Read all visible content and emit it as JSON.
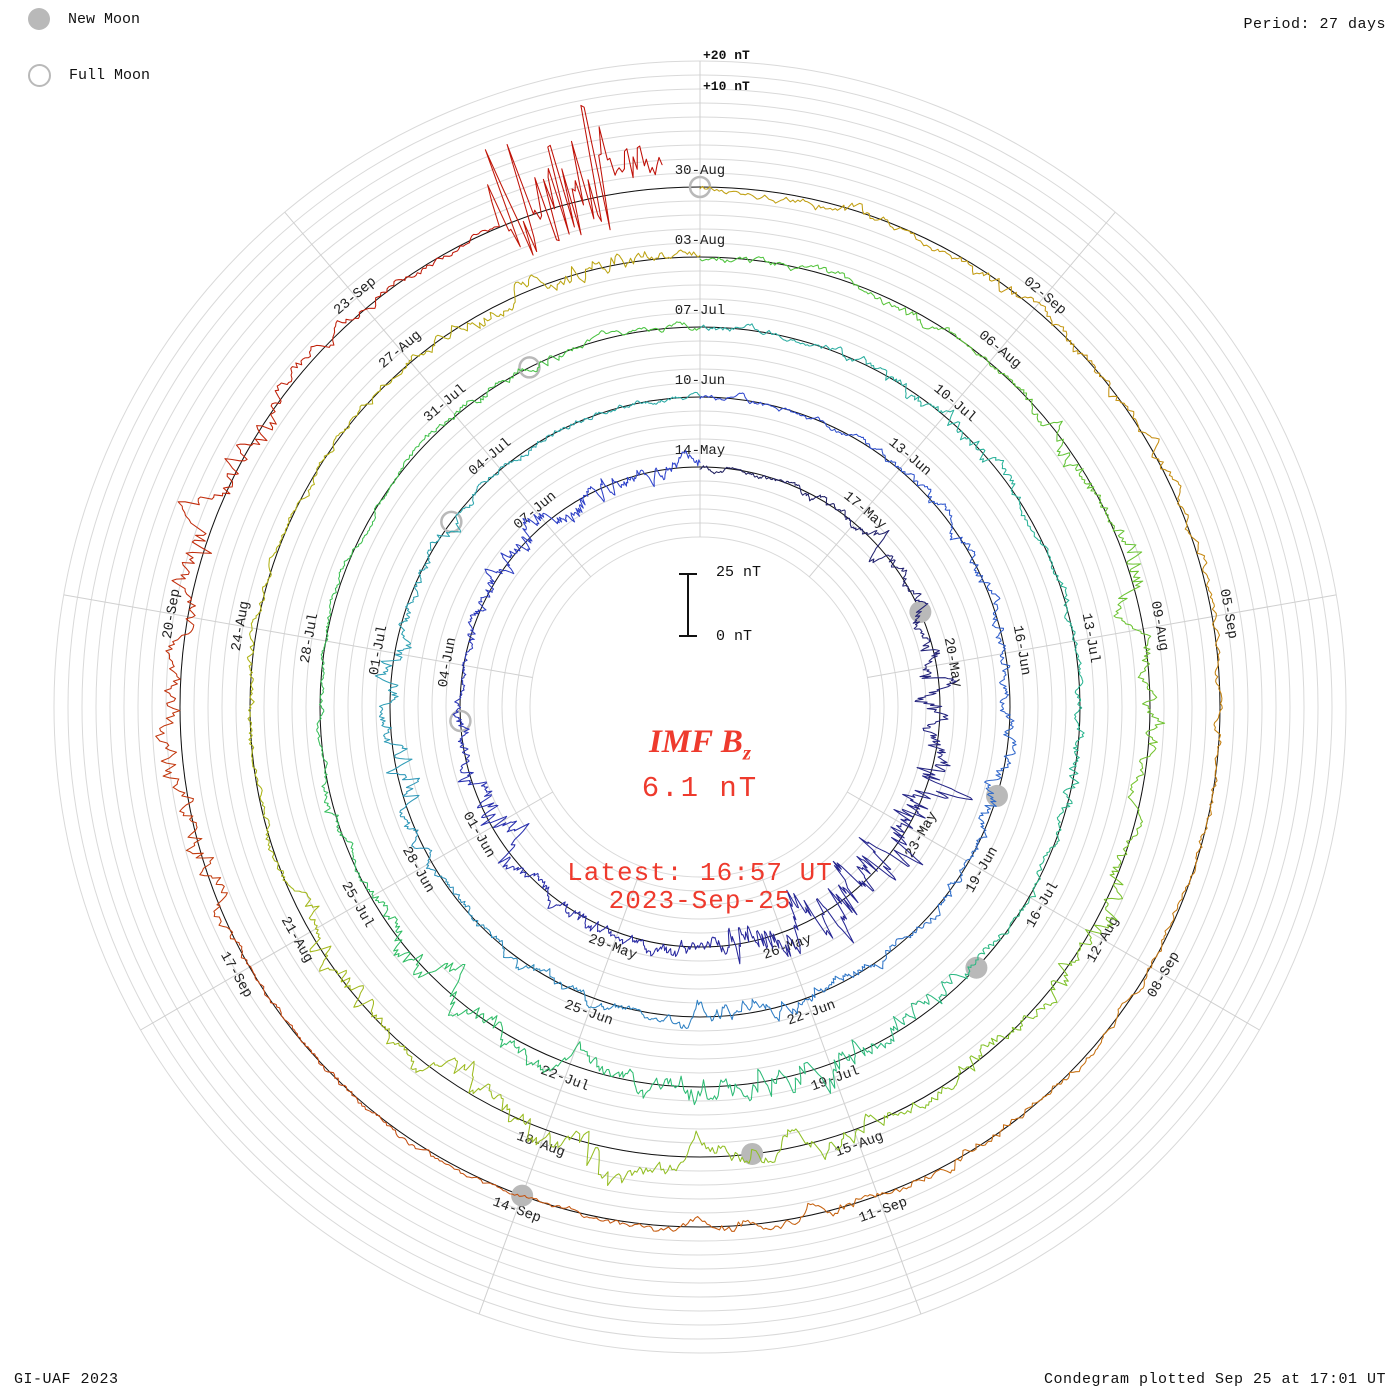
{
  "legend": {
    "new_moon": "New Moon",
    "full_moon": "Full Moon"
  },
  "header": {
    "period": "Period: 27 days"
  },
  "footer": {
    "credit": "GI-UAF 2023",
    "plotted": "Condegram plotted Sep 25 at 17:01 UT"
  },
  "center": {
    "title_main": "IMF B",
    "title_sub": "z",
    "value": "6.1 nT",
    "latest_line1": "Latest: 16:57 UT",
    "latest_line2": "2023-Sep-25"
  },
  "scale": {
    "top_label": "25 nT",
    "bottom_label": "0 nT"
  },
  "peak_labels": {
    "p20": "+20 nT",
    "p10": "+10 nT"
  },
  "colors": {
    "accent-red": "#ee3a2d",
    "moon-gray": "#b9b9b9",
    "grid-gray": "#d9d9d9",
    "spoke-gray": "#d0d0d0",
    "baseline-black": "#111111",
    "label-dark": "#222222",
    "text-black": "#111111"
  },
  "chart_data": {
    "type": "line",
    "subtype": "condegram-polar-spiral-timeseries",
    "title": "IMF Bz condegram",
    "quantity": "IMF Bz (nT)",
    "period_days": 27,
    "days_per_spoke": 3,
    "spoke_angle_deg": 40,
    "start_date": "2023-May-14",
    "end_date": "2023-Sep-25",
    "latest": {
      "value_nT": 6.1,
      "time": "16:57 UT",
      "date": "2023-Sep-25"
    },
    "scale_bar": {
      "span_nT": 25,
      "zero_label": "0 nT",
      "span_label": "25 nT"
    },
    "peak_annotations": [
      "+20 nT",
      "+10 nT"
    ],
    "end_day_last_ring": 26.7,
    "rings": [
      {
        "start": "14-May",
        "labels": [
          "14-May",
          "17-May",
          "20-May",
          "23-May",
          "26-May",
          "29-May",
          "01-Jun",
          "04-Jun",
          "07-Jun"
        ]
      },
      {
        "start": "10-Jun",
        "labels": [
          "10-Jun",
          "13-Jun",
          "16-Jun",
          "19-Jun",
          "22-Jun",
          "25-Jun",
          "28-Jun",
          "01-Jul",
          "04-Jul"
        ]
      },
      {
        "start": "07-Jul",
        "labels": [
          "07-Jul",
          "10-Jul",
          "13-Jul",
          "16-Jul",
          "19-Jul",
          "22-Jul",
          "25-Jul",
          "28-Jul",
          "31-Jul"
        ]
      },
      {
        "start": "03-Aug",
        "labels": [
          "03-Aug",
          "06-Aug",
          "09-Aug",
          "12-Aug",
          "15-Aug",
          "18-Aug",
          "21-Aug",
          "24-Aug",
          "27-Aug"
        ]
      },
      {
        "start": "30-Aug",
        "labels": [
          "30-Aug",
          "02-Sep",
          "05-Sep",
          "08-Sep",
          "11-Sep",
          "14-Sep",
          "17-Sep",
          "20-Sep",
          "23-Sep"
        ]
      }
    ],
    "moons": [
      {
        "type": "new",
        "date": "19-May",
        "day": 5
      },
      {
        "type": "full",
        "date": "03-Jun",
        "day": 20
      },
      {
        "type": "new",
        "date": "18-Jun",
        "day": 35
      },
      {
        "type": "full",
        "date": "03-Jul",
        "day": 50
      },
      {
        "type": "new",
        "date": "17-Jul",
        "day": 64
      },
      {
        "type": "full",
        "date": "01-Aug",
        "day": 79
      },
      {
        "type": "new",
        "date": "16-Aug",
        "day": 94
      },
      {
        "type": "full",
        "date": "30-Aug",
        "day": 108
      },
      {
        "type": "new",
        "date": "14-Sep",
        "day": 123
      }
    ],
    "active_periods": [
      {
        "ring": 0,
        "from_day": 8,
        "to_day": 13,
        "boost": 1.7
      },
      {
        "ring": 1,
        "from_day": 3.5,
        "to_day": 8.5,
        "boost": 2.2
      },
      {
        "ring": 1,
        "from_day": 19,
        "to_day": 23,
        "boost": 1.8
      },
      {
        "ring": 3,
        "from_day": 5,
        "to_day": 9,
        "boost": 1.7
      },
      {
        "ring": 4,
        "from_day": 25.3,
        "to_day": 26.7,
        "boost": 1.0
      }
    ],
    "color_stops": [
      [
        0.0,
        "#20205c"
      ],
      [
        0.1,
        "#27279f"
      ],
      [
        0.2,
        "#2f45cf"
      ],
      [
        0.28,
        "#2f74c9"
      ],
      [
        0.36,
        "#2fa3b4"
      ],
      [
        0.44,
        "#28b396"
      ],
      [
        0.52,
        "#2fbd6a"
      ],
      [
        0.6,
        "#4cc43f"
      ],
      [
        0.68,
        "#86c229"
      ],
      [
        0.76,
        "#b2b315"
      ],
      [
        0.82,
        "#c49a12"
      ],
      [
        0.88,
        "#c86f12"
      ],
      [
        0.94,
        "#c23e0e"
      ],
      [
        1.0,
        "#bf0d06"
      ]
    ]
  }
}
